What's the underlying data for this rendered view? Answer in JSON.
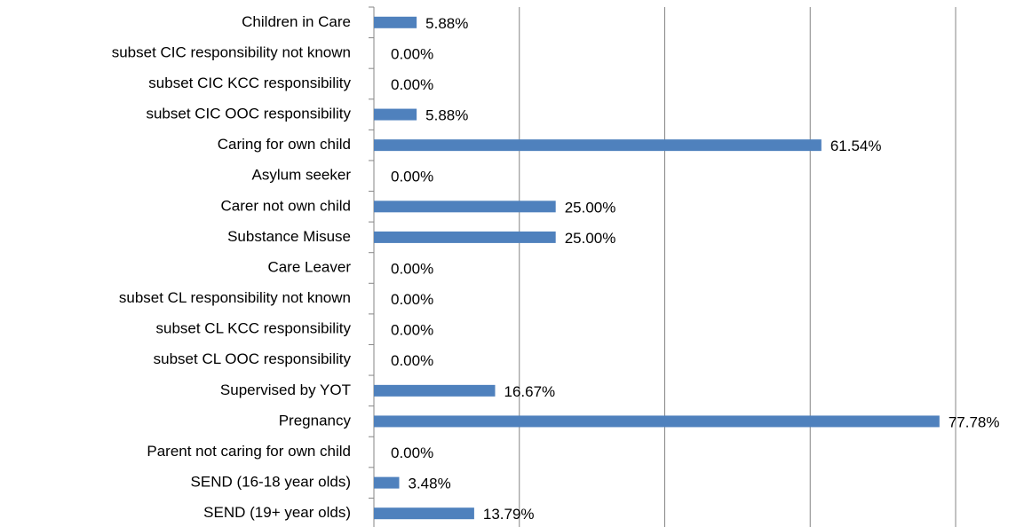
{
  "chart_data": {
    "type": "barh",
    "categories": [
      "Children in Care",
      "subset CIC responsibility not known",
      "subset CIC KCC responsibility",
      "subset CIC OOC responsibility",
      "Caring for own child",
      "Asylum seeker",
      "Carer not own child",
      "Substance Misuse",
      "Care Leaver",
      "subset CL responsibility not known",
      "subset CL KCC responsibility",
      "subset CL OOC responsibility",
      "Supervised by YOT",
      "Pregnancy",
      "Parent not caring for own child",
      "SEND (16-18 year olds)",
      "SEND (19+ year olds)"
    ],
    "values": [
      5.88,
      0,
      0,
      5.88,
      61.54,
      0,
      25,
      25,
      0,
      0,
      0,
      0,
      16.67,
      77.78,
      0,
      3.48,
      13.79
    ],
    "value_labels": [
      "5.88%",
      "0.00%",
      "0.00%",
      "5.88%",
      "61.54%",
      "0.00%",
      "25.00%",
      "25.00%",
      "0.00%",
      "0.00%",
      "0.00%",
      "0.00%",
      "16.67%",
      "77.78%",
      "0.00%",
      "3.48%",
      "13.79%"
    ],
    "color": "#4f81bd",
    "xlim": [
      0,
      80
    ],
    "xticks": [
      0,
      20,
      40,
      60,
      80
    ],
    "grid": true
  }
}
